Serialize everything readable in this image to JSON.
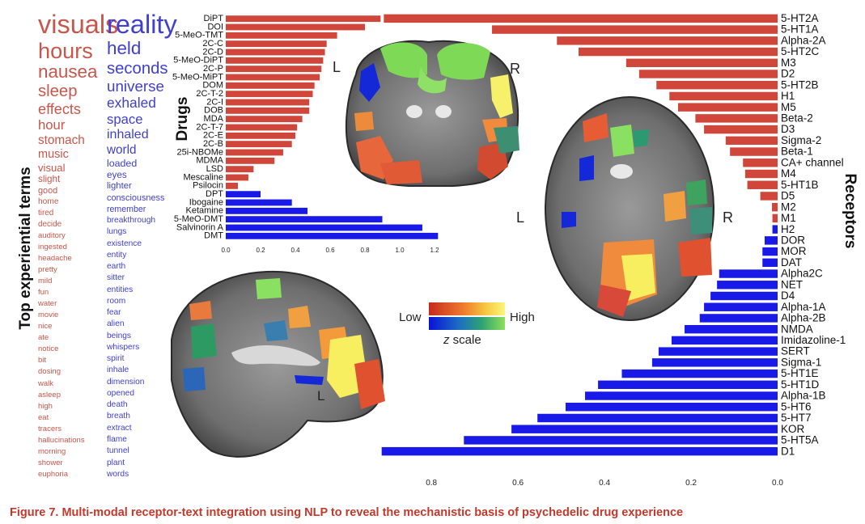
{
  "caption": "Figure 7.  Multi-modal receptor-text integration using NLP to reveal the mechanistic basis of psychedelic drug experience",
  "colors": {
    "red": "#d0463a",
    "blue": "#1a1ae8",
    "term_red": "#c8564a",
    "term_blue": "#3f3fd0"
  },
  "terms": {
    "axis_label": "Top experiential terms",
    "left": [
      {
        "text": "visuals",
        "weight": 1.0
      },
      {
        "text": "hours",
        "weight": 0.85
      },
      {
        "text": "nausea",
        "weight": 0.72
      },
      {
        "text": "sleep",
        "weight": 0.66
      },
      {
        "text": "effects",
        "weight": 0.6
      },
      {
        "text": "hour",
        "weight": 0.56
      },
      {
        "text": "stomach",
        "weight": 0.52
      },
      {
        "text": "music",
        "weight": 0.5
      },
      {
        "text": "visual",
        "weight": 0.46
      },
      {
        "text": "slight",
        "weight": 0.42
      },
      {
        "text": "good",
        "weight": 0.4
      },
      {
        "text": "home",
        "weight": 0.38
      },
      {
        "text": "tired",
        "weight": 0.37
      },
      {
        "text": "decide",
        "weight": 0.37
      },
      {
        "text": "auditory",
        "weight": 0.36
      },
      {
        "text": "ingested",
        "weight": 0.36
      },
      {
        "text": "headache",
        "weight": 0.36
      },
      {
        "text": "pretty",
        "weight": 0.36
      },
      {
        "text": "mild",
        "weight": 0.36
      },
      {
        "text": "fun",
        "weight": 0.36
      },
      {
        "text": "water",
        "weight": 0.36
      },
      {
        "text": "movie",
        "weight": 0.36
      },
      {
        "text": "nice",
        "weight": 0.36
      },
      {
        "text": "ate",
        "weight": 0.36
      },
      {
        "text": "notice",
        "weight": 0.36
      },
      {
        "text": "bit",
        "weight": 0.36
      },
      {
        "text": "dosing",
        "weight": 0.36
      },
      {
        "text": "walk",
        "weight": 0.36
      },
      {
        "text": "asleep",
        "weight": 0.36
      },
      {
        "text": "high",
        "weight": 0.36
      },
      {
        "text": "eat",
        "weight": 0.36
      },
      {
        "text": "tracers",
        "weight": 0.36
      },
      {
        "text": "hallucinations",
        "weight": 0.36
      },
      {
        "text": "morning",
        "weight": 0.36
      },
      {
        "text": "shower",
        "weight": 0.36
      },
      {
        "text": "euphoria",
        "weight": 0.36
      }
    ],
    "right": [
      {
        "text": "reality",
        "weight": 1.0
      },
      {
        "text": "held",
        "weight": 0.72
      },
      {
        "text": "seconds",
        "weight": 0.66
      },
      {
        "text": "universe",
        "weight": 0.62
      },
      {
        "text": "exhaled",
        "weight": 0.58
      },
      {
        "text": "space",
        "weight": 0.56
      },
      {
        "text": "inhaled",
        "weight": 0.54
      },
      {
        "text": "world",
        "weight": 0.52
      },
      {
        "text": "loaded",
        "weight": 0.44
      },
      {
        "text": "eyes",
        "weight": 0.42
      },
      {
        "text": "lighter",
        "weight": 0.41
      },
      {
        "text": "consciousness",
        "weight": 0.4
      },
      {
        "text": "remember",
        "weight": 0.39
      },
      {
        "text": "breakthrough",
        "weight": 0.38
      },
      {
        "text": "lungs",
        "weight": 0.38
      },
      {
        "text": "existence",
        "weight": 0.38
      },
      {
        "text": "entity",
        "weight": 0.38
      },
      {
        "text": "earth",
        "weight": 0.38
      },
      {
        "text": "sitter",
        "weight": 0.38
      },
      {
        "text": "entities",
        "weight": 0.38
      },
      {
        "text": "room",
        "weight": 0.38
      },
      {
        "text": "fear",
        "weight": 0.38
      },
      {
        "text": "alien",
        "weight": 0.38
      },
      {
        "text": "beings",
        "weight": 0.38
      },
      {
        "text": "whispers",
        "weight": 0.38
      },
      {
        "text": "spirit",
        "weight": 0.38
      },
      {
        "text": "inhale",
        "weight": 0.38
      },
      {
        "text": "dimension",
        "weight": 0.38
      },
      {
        "text": "opened",
        "weight": 0.38
      },
      {
        "text": "death",
        "weight": 0.38
      },
      {
        "text": "breath",
        "weight": 0.38
      },
      {
        "text": "extract",
        "weight": 0.38
      },
      {
        "text": "flame",
        "weight": 0.38
      },
      {
        "text": "tunnel",
        "weight": 0.38
      },
      {
        "text": "plant",
        "weight": 0.38
      },
      {
        "text": "words",
        "weight": 0.38
      }
    ]
  },
  "chart_data": [
    {
      "type": "bar",
      "orientation": "horizontal",
      "ylabel": "Drugs",
      "xlim": [
        0,
        1.2
      ],
      "xticks": [
        "0.0",
        "0.2",
        "0.4",
        "0.6",
        "0.8",
        "1.0",
        "1.2"
      ],
      "categories": [
        "DiPT",
        "DOI",
        "5-MeO-TMT",
        "2C-C",
        "2C-D",
        "5-MeO-DiPT",
        "2C-P",
        "5-MeO-MiPT",
        "DOM",
        "2C-T-2",
        "2C-I",
        "DOB",
        "MDA",
        "2C-T-7",
        "2C-E",
        "2C-B",
        "25i-NBOMe",
        "MDMA",
        "LSD",
        "Mescaline",
        "Psilocin",
        "DPT",
        "Ibogaine",
        "Ketamine",
        "5-MeO-DMT",
        "Salvinorin A",
        "DMT"
      ],
      "values": [
        0.89,
        0.8,
        0.64,
        0.58,
        0.57,
        0.56,
        0.55,
        0.54,
        0.51,
        0.5,
        0.48,
        0.48,
        0.44,
        0.41,
        0.4,
        0.38,
        0.33,
        0.28,
        0.16,
        0.13,
        0.07,
        0.2,
        0.38,
        0.47,
        0.9,
        1.13,
        1.22
      ],
      "group": [
        "red",
        "red",
        "red",
        "red",
        "red",
        "red",
        "red",
        "red",
        "red",
        "red",
        "red",
        "red",
        "red",
        "red",
        "red",
        "red",
        "red",
        "red",
        "red",
        "red",
        "red",
        "blue",
        "blue",
        "blue",
        "blue",
        "blue",
        "blue"
      ]
    },
    {
      "type": "bar",
      "orientation": "horizontal",
      "ylabel": "Receptors",
      "x_reversed": true,
      "xlim": [
        0,
        0.92
      ],
      "xticks": [
        "0.8",
        "0.6",
        "0.4",
        "0.2",
        "0.0"
      ],
      "xtick_values": [
        0.8,
        0.6,
        0.4,
        0.2,
        0.0
      ],
      "categories": [
        "5-HT2A",
        "5-HT1A",
        "Alpha-2A",
        "5-HT2C",
        "M3",
        "D2",
        "5-HT2B",
        "H1",
        "M5",
        "Beta-2",
        "D3",
        "Sigma-2",
        "Beta-1",
        "CA+ channel",
        "M4",
        "5-HT1B",
        "D5",
        "M2",
        "M1",
        "H2",
        "DOR",
        "MOR",
        "DAT",
        "Alpha2C",
        "NET",
        "D4",
        "Alpha-1A",
        "Alpha-2B",
        "NMDA",
        "Imidazoline-1",
        "SERT",
        "Sigma-1",
        "5-HT1E",
        "5-HT1D",
        "Alpha-1B",
        "5-HT6",
        "5-HT7",
        "KOR",
        "5-HT5A",
        "D1"
      ],
      "values": [
        0.91,
        0.66,
        0.51,
        0.46,
        0.35,
        0.32,
        0.28,
        0.25,
        0.23,
        0.19,
        0.17,
        0.12,
        0.11,
        0.08,
        0.075,
        0.07,
        0.04,
        0.013,
        0.012,
        0.012,
        0.03,
        0.035,
        0.035,
        0.135,
        0.14,
        0.155,
        0.17,
        0.18,
        0.215,
        0.245,
        0.275,
        0.29,
        0.36,
        0.415,
        0.445,
        0.49,
        0.555,
        0.615,
        0.725,
        0.915
      ],
      "group": [
        "red",
        "red",
        "red",
        "red",
        "red",
        "red",
        "red",
        "red",
        "red",
        "red",
        "red",
        "red",
        "red",
        "red",
        "red",
        "red",
        "red",
        "red",
        "red",
        "blue",
        "blue",
        "blue",
        "blue",
        "blue",
        "blue",
        "blue",
        "blue",
        "blue",
        "blue",
        "blue",
        "blue",
        "blue",
        "blue",
        "blue",
        "blue",
        "blue",
        "blue",
        "blue",
        "blue",
        "blue"
      ]
    }
  ],
  "brain": {
    "coronal_L": "L",
    "coronal_R": "R",
    "axial_L": "L",
    "axial_R": "R",
    "sagittal_L": "L"
  },
  "z_scale": {
    "low": "Low",
    "high": "High",
    "label_italic": "z",
    "label_rest": " scale"
  }
}
